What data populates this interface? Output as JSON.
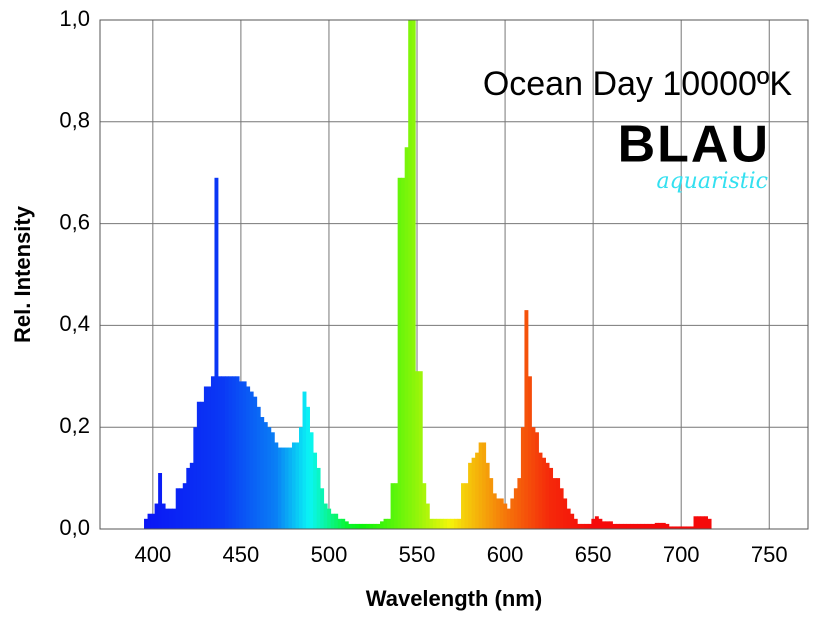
{
  "chart_data": {
    "type": "spectrum",
    "title": "Ocean Day 10000ºK",
    "annotations": [
      "BLAU",
      "aquaristic"
    ],
    "xlabel": "Wavelength (nm)",
    "ylabel": "Rel. Intensity",
    "x": [
      396,
      398,
      400,
      402,
      404,
      406,
      408,
      410,
      412,
      414,
      416,
      418,
      420,
      422,
      424,
      426,
      428,
      430,
      432,
      434,
      436,
      438,
      440,
      442,
      444,
      446,
      448,
      450,
      452,
      454,
      456,
      458,
      460,
      462,
      464,
      466,
      468,
      470,
      472,
      474,
      476,
      478,
      480,
      482,
      484,
      486,
      488,
      490,
      492,
      494,
      496,
      498,
      500,
      502,
      504,
      506,
      508,
      510,
      512,
      514,
      516,
      518,
      520,
      522,
      524,
      526,
      528,
      530,
      532,
      534,
      536,
      538,
      540,
      542,
      544,
      546,
      548,
      550,
      552,
      554,
      556,
      558,
      560,
      562,
      564,
      566,
      568,
      570,
      572,
      574,
      576,
      578,
      580,
      582,
      584,
      586,
      588,
      590,
      592,
      594,
      596,
      598,
      600,
      602,
      604,
      606,
      608,
      610,
      612,
      614,
      616,
      618,
      620,
      622,
      624,
      626,
      628,
      630,
      632,
      634,
      636,
      638,
      640,
      642,
      644,
      646,
      648,
      650,
      652,
      654,
      656,
      658,
      660,
      662,
      664,
      666,
      668,
      670,
      672,
      674,
      676,
      678,
      680,
      682,
      684,
      686,
      688,
      690,
      692,
      694,
      696,
      698,
      700,
      702,
      704,
      706,
      708,
      710,
      712,
      714,
      716
    ],
    "values": [
      0.02,
      0.03,
      0.03,
      0.05,
      0.11,
      0.05,
      0.04,
      0.04,
      0.04,
      0.08,
      0.08,
      0.09,
      0.12,
      0.13,
      0.2,
      0.25,
      0.25,
      0.28,
      0.28,
      0.3,
      0.69,
      0.3,
      0.3,
      0.3,
      0.3,
      0.3,
      0.3,
      0.29,
      0.29,
      0.28,
      0.27,
      0.26,
      0.24,
      0.22,
      0.21,
      0.2,
      0.19,
      0.17,
      0.16,
      0.16,
      0.16,
      0.16,
      0.17,
      0.17,
      0.2,
      0.27,
      0.24,
      0.19,
      0.15,
      0.12,
      0.08,
      0.05,
      0.04,
      0.03,
      0.03,
      0.02,
      0.02,
      0.015,
      0.01,
      0.01,
      0.01,
      0.01,
      0.01,
      0.01,
      0.01,
      0.01,
      0.01,
      0.015,
      0.02,
      0.02,
      0.09,
      0.09,
      0.69,
      0.69,
      0.75,
      1.0,
      1.0,
      0.31,
      0.31,
      0.09,
      0.05,
      0.02,
      0.02,
      0.02,
      0.02,
      0.02,
      0.02,
      0.02,
      0.02,
      0.02,
      0.09,
      0.09,
      0.13,
      0.14,
      0.15,
      0.17,
      0.17,
      0.13,
      0.1,
      0.07,
      0.06,
      0.06,
      0.05,
      0.04,
      0.06,
      0.08,
      0.1,
      0.2,
      0.43,
      0.3,
      0.2,
      0.19,
      0.15,
      0.14,
      0.13,
      0.12,
      0.1,
      0.1,
      0.08,
      0.06,
      0.04,
      0.03,
      0.02,
      0.01,
      0.01,
      0.01,
      0.01,
      0.02,
      0.025,
      0.02,
      0.015,
      0.015,
      0.015,
      0.01,
      0.01,
      0.01,
      0.01,
      0.01,
      0.01,
      0.01,
      0.01,
      0.01,
      0.01,
      0.01,
      0.01,
      0.012,
      0.012,
      0.012,
      0.01,
      0.005,
      0.005,
      0.005,
      0.005,
      0.005,
      0.005,
      0.005,
      0.025,
      0.025,
      0.025,
      0.025,
      0.02
    ],
    "xlim": [
      370,
      772
    ],
    "ylim": [
      0,
      1
    ],
    "xticks": [
      400,
      450,
      500,
      550,
      600,
      650,
      700,
      750
    ],
    "yticks": [
      {
        "value": 0,
        "label": "0,0"
      },
      {
        "value": 0.2,
        "label": "0,2"
      },
      {
        "value": 0.4,
        "label": "0,4"
      },
      {
        "value": 0.6,
        "label": "0,6"
      },
      {
        "value": 0.8,
        "label": "0,8"
      },
      {
        "value": 1,
        "label": "1,0"
      }
    ],
    "grid": true
  }
}
